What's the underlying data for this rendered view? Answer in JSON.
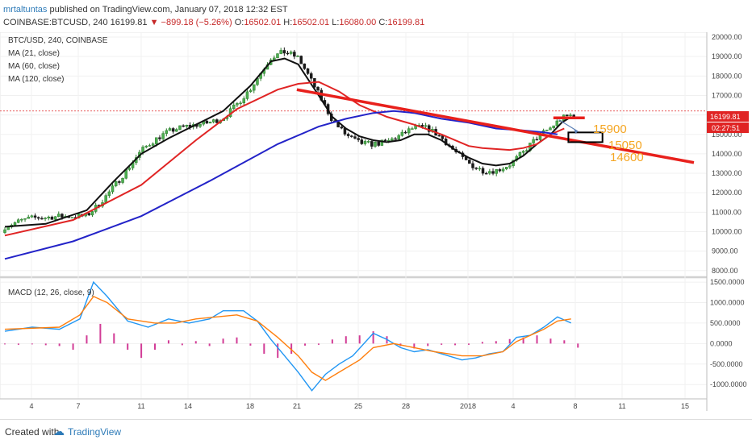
{
  "header": {
    "author": "mrtaltuntas",
    "published": " published on TradingView.com, January 07, 2018 12:32 EST",
    "symbol": "COINBASE:BTCUSD, 240",
    "last": "16199.81",
    "change": "▼ −899.18 (−5.26%)",
    "o_label": "O:",
    "o_value": "16502.01",
    "h_label": "H:",
    "h_value": "16502.01",
    "l_label": "L:",
    "l_value": "16080.00",
    "c_label": "C:",
    "c_value": "16199.81"
  },
  "legend": {
    "pair": "BTC/USD, 240, COINBASE",
    "ma21": "MA (21, close)",
    "ma60": "MA (60, close)",
    "ma120": "MA (120, close)"
  },
  "price_tags": {
    "last_price": "16199.81",
    "countdown": "02:27:51"
  },
  "annotations": {
    "a1": "15900",
    "a2": "15050",
    "a3": "14600"
  },
  "macd_label": "MACD (12, 26, close, 9)",
  "footer": {
    "created_with": "Created with",
    "brand": "TradingView"
  },
  "colors": {
    "ma21": "#111111",
    "ma60": "#e02424",
    "ma120": "#2323c8",
    "up": "#2b7a2b",
    "down": "#1a1a1a",
    "trendline": "#e8201c",
    "macd": "#2196f3",
    "signal": "#ff7f0e",
    "hist": "#d23c96",
    "annotation": "#f5a623"
  },
  "chart_data": [
    {
      "type": "candlestick",
      "title": "BTC/USD, 240, COINBASE",
      "x_tick_labels": [
        "4",
        "7",
        "11",
        "14",
        "18",
        "21",
        "25",
        "28",
        "2018",
        "4",
        "8",
        "11",
        "15"
      ],
      "y_tick_labels": [
        "8000.00",
        "9000.00",
        "10000.00",
        "11000.00",
        "12000.00",
        "13000.00",
        "14000.00",
        "15000.00",
        "16000.00",
        "17000.00",
        "18000.00",
        "19000.00",
        "20000.00"
      ],
      "ylim": [
        7700,
        20250
      ],
      "series": [
        {
          "name": "MA (21, close)",
          "points": [
            [
              0,
              10250
            ],
            [
              3,
              10400
            ],
            [
              6,
              11100
            ],
            [
              8,
              12600
            ],
            [
              10,
              14000
            ],
            [
              12,
              14800
            ],
            [
              14,
              15500
            ],
            [
              16,
              16200
            ],
            [
              18,
              17500
            ],
            [
              19.5,
              18750
            ],
            [
              20.5,
              18900
            ],
            [
              21.5,
              18600
            ],
            [
              23,
              17000
            ],
            [
              24,
              15900
            ],
            [
              25,
              15300
            ],
            [
              26,
              14900
            ],
            [
              27,
              14700
            ],
            [
              28,
              14600
            ],
            [
              29,
              14700
            ],
            [
              30,
              15000
            ],
            [
              31,
              15000
            ],
            [
              32,
              14700
            ],
            [
              33,
              14200
            ],
            [
              34,
              13800
            ],
            [
              35,
              13500
            ],
            [
              36,
              13400
            ],
            [
              37,
              13500
            ],
            [
              38,
              13900
            ],
            [
              39,
              14500
            ],
            [
              40,
              15000
            ],
            [
              40.8,
              15600
            ],
            [
              41.5,
              15900
            ]
          ]
        },
        {
          "name": "MA (60, close)",
          "points": [
            [
              0,
              9800
            ],
            [
              5,
              10600
            ],
            [
              10,
              12400
            ],
            [
              14,
              14700
            ],
            [
              17,
              16300
            ],
            [
              20,
              17300
            ],
            [
              21.5,
              17600
            ],
            [
              23,
              17700
            ],
            [
              24.5,
              17200
            ],
            [
              26,
              16500
            ],
            [
              28,
              15900
            ],
            [
              30,
              15500
            ],
            [
              32,
              15000
            ],
            [
              34,
              14400
            ],
            [
              35,
              14300
            ],
            [
              37,
              14200
            ],
            [
              38,
              14300
            ],
            [
              39,
              14500
            ],
            [
              40,
              15000
            ],
            [
              41,
              15300
            ]
          ]
        },
        {
          "name": "MA (120, close)",
          "points": [
            [
              0,
              8600
            ],
            [
              5,
              9500
            ],
            [
              10,
              10800
            ],
            [
              15,
              12600
            ],
            [
              20,
              14500
            ],
            [
              23,
              15400
            ],
            [
              25,
              15800
            ],
            [
              27,
              16100
            ],
            [
              28.5,
              16200
            ],
            [
              30,
              16100
            ],
            [
              32,
              15800
            ],
            [
              34,
              15600
            ],
            [
              36,
              15300
            ],
            [
              38,
              15200
            ],
            [
              39.5,
              15100
            ],
            [
              40.5,
              15000
            ]
          ]
        }
      ],
      "trendlines": [
        {
          "name": "resistance",
          "points": [
            [
              21.4,
              17300
            ],
            [
              50.5,
              13550
            ]
          ]
        },
        {
          "name": "target-line",
          "points": [
            [
              40.2,
              15850
            ],
            [
              42.5,
              15850
            ]
          ]
        }
      ],
      "annotations": [
        {
          "text": "15900",
          "x": 42.3,
          "y": 15550
        },
        {
          "text": "15050",
          "x": 43.7,
          "y": 14800
        },
        {
          "text": "14600",
          "x": 43.3,
          "y": 14300
        }
      ]
    },
    {
      "type": "line",
      "title": "MACD (12, 26, close, 9)",
      "y_tick_labels": [
        "-1000.0000",
        "-500.0000",
        "0.0000",
        "500.0000",
        "1000.0000",
        "1500.0000"
      ],
      "ylim": [
        -1350,
        1600
      ],
      "series": [
        {
          "name": "MACD",
          "points": [
            [
              0,
              300
            ],
            [
              2,
              400
            ],
            [
              4,
              350
            ],
            [
              5.5,
              600
            ],
            [
              6.5,
              1500
            ],
            [
              7.5,
              1150
            ],
            [
              9,
              550
            ],
            [
              10.5,
              400
            ],
            [
              12,
              600
            ],
            [
              13.5,
              500
            ],
            [
              15,
              600
            ],
            [
              16,
              800
            ],
            [
              17.5,
              800
            ],
            [
              18.5,
              550
            ],
            [
              19.5,
              100
            ],
            [
              20.5,
              -300
            ],
            [
              21.5,
              -700
            ],
            [
              22.5,
              -1150
            ],
            [
              23.5,
              -750
            ],
            [
              24.5,
              -500
            ],
            [
              25.5,
              -300
            ],
            [
              27,
              250
            ],
            [
              28,
              100
            ],
            [
              29,
              -100
            ],
            [
              30,
              -200
            ],
            [
              31,
              -150
            ],
            [
              32.5,
              -300
            ],
            [
              33.5,
              -400
            ],
            [
              34.5,
              -350
            ],
            [
              35.5,
              -250
            ],
            [
              36.5,
              -200
            ],
            [
              37.5,
              150
            ],
            [
              38.5,
              200
            ],
            [
              39.5,
              400
            ],
            [
              40.5,
              650
            ],
            [
              41.5,
              500
            ]
          ]
        },
        {
          "name": "Signal",
          "points": [
            [
              0,
              350
            ],
            [
              2.5,
              380
            ],
            [
              4,
              400
            ],
            [
              5.5,
              700
            ],
            [
              6.5,
              1150
            ],
            [
              7.5,
              1000
            ],
            [
              9,
              600
            ],
            [
              11,
              500
            ],
            [
              12.5,
              500
            ],
            [
              14,
              600
            ],
            [
              15.5,
              650
            ],
            [
              17,
              700
            ],
            [
              18.5,
              550
            ],
            [
              20,
              150
            ],
            [
              21.5,
              -300
            ],
            [
              22.5,
              -700
            ],
            [
              23.5,
              -900
            ],
            [
              24.5,
              -700
            ],
            [
              26,
              -400
            ],
            [
              27,
              -100
            ],
            [
              28.5,
              0
            ],
            [
              30,
              -100
            ],
            [
              31.5,
              -200
            ],
            [
              33.5,
              -300
            ],
            [
              35,
              -300
            ],
            [
              36.5,
              -200
            ],
            [
              37.5,
              50
            ],
            [
              38.5,
              200
            ],
            [
              39.5,
              350
            ],
            [
              40.5,
              550
            ],
            [
              41.5,
              600
            ]
          ]
        }
      ],
      "histogram": [
        [
          0,
          -20
        ],
        [
          1,
          -30
        ],
        [
          2,
          -10
        ],
        [
          3,
          -40
        ],
        [
          4,
          -60
        ],
        [
          5,
          -150
        ],
        [
          6,
          200
        ],
        [
          7,
          480
        ],
        [
          8,
          250
        ],
        [
          9,
          -150
        ],
        [
          10,
          -350
        ],
        [
          11,
          -150
        ],
        [
          12,
          80
        ],
        [
          13,
          -40
        ],
        [
          14,
          60
        ],
        [
          15,
          -60
        ],
        [
          16,
          120
        ],
        [
          17,
          150
        ],
        [
          18,
          -50
        ],
        [
          19,
          -250
        ],
        [
          20,
          -350
        ],
        [
          21,
          -250
        ],
        [
          22,
          -50
        ],
        [
          23,
          -30
        ],
        [
          24,
          100
        ],
        [
          25,
          180
        ],
        [
          26,
          200
        ],
        [
          27,
          300
        ],
        [
          28,
          180
        ],
        [
          29,
          -60
        ],
        [
          30,
          -120
        ],
        [
          31,
          -60
        ],
        [
          32,
          -30
        ],
        [
          33,
          -40
        ],
        [
          34,
          -30
        ],
        [
          35,
          40
        ],
        [
          36,
          60
        ],
        [
          37,
          110
        ],
        [
          38,
          150
        ],
        [
          39,
          200
        ],
        [
          40,
          120
        ],
        [
          41,
          80
        ],
        [
          42,
          -100
        ]
      ]
    }
  ]
}
